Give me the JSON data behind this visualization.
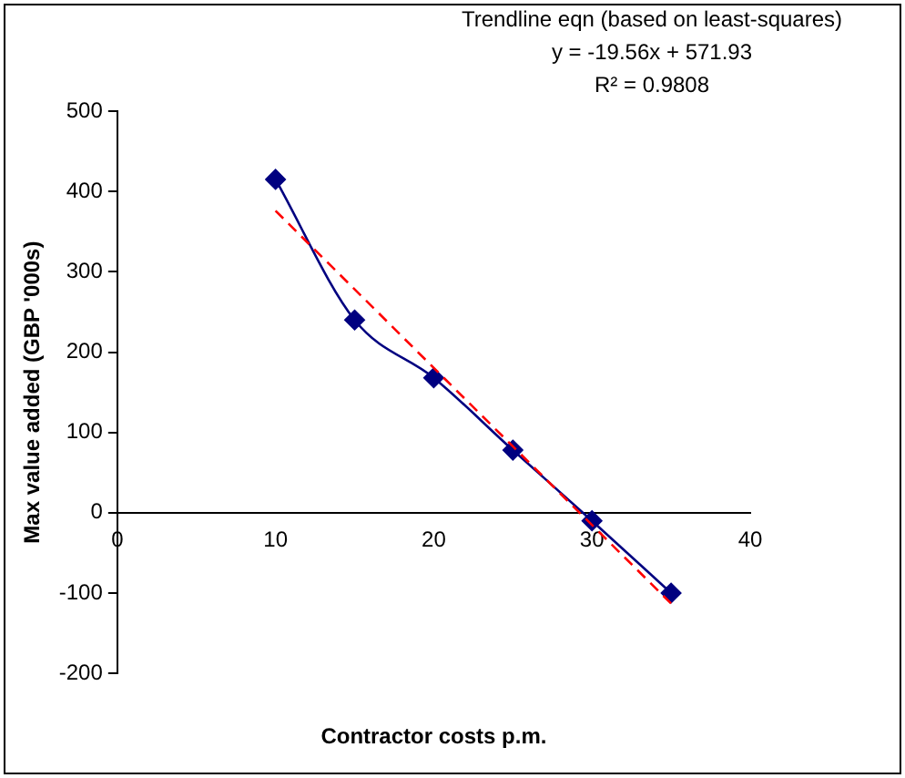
{
  "chart_data": {
    "type": "line",
    "xlabel": "Contractor costs p.m.",
    "ylabel": "Max value added (GBP '000s)",
    "annotations": [
      "Trendline eqn (based on least-squares)",
      "y = -19.56x + 571.93",
      "R² = 0.9808"
    ],
    "x": [
      10,
      15,
      20,
      25,
      30,
      35
    ],
    "series": [
      {
        "color": "#000080",
        "values": [
          415,
          240,
          168,
          78,
          -10,
          -100
        ],
        "marker": "diamond",
        "line_style": "solid"
      },
      {
        "color": "#ff0000",
        "x": [
          10,
          35
        ],
        "values": [
          376,
          -113
        ],
        "marker": "none",
        "line_style": "dashed"
      }
    ],
    "xlim": [
      0,
      40
    ],
    "xticks": [
      0,
      10,
      20,
      30,
      40
    ],
    "ylim": [
      -200,
      500
    ],
    "yticks": [
      -200,
      -100,
      0,
      100,
      200,
      300,
      400,
      500
    ],
    "grid": false,
    "legend": false
  }
}
